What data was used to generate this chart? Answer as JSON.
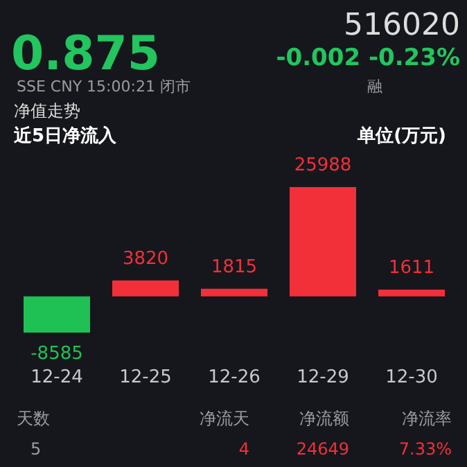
{
  "chart_data": {
    "type": "bar",
    "title": "近5日净流入",
    "ylabel": "单位(万元)",
    "categories": [
      "12-24",
      "12-25",
      "12-26",
      "12-29",
      "12-30"
    ],
    "values": [
      -8585,
      3820,
      1815,
      25988,
      1611
    ],
    "colors": [
      "#1fc155",
      "#f2303a",
      "#f2303a",
      "#f2303a",
      "#f2303a"
    ],
    "data_labels": true,
    "annotations": [
      "516020",
      "0.875",
      "-0.002  -0.23%",
      "SSE  CNY  15:00:21  闭市",
      "融",
      "净值走势",
      "天数",
      "净流天",
      "净流额",
      "净流率",
      "5",
      "4",
      "24649",
      "7.33%"
    ]
  }
}
